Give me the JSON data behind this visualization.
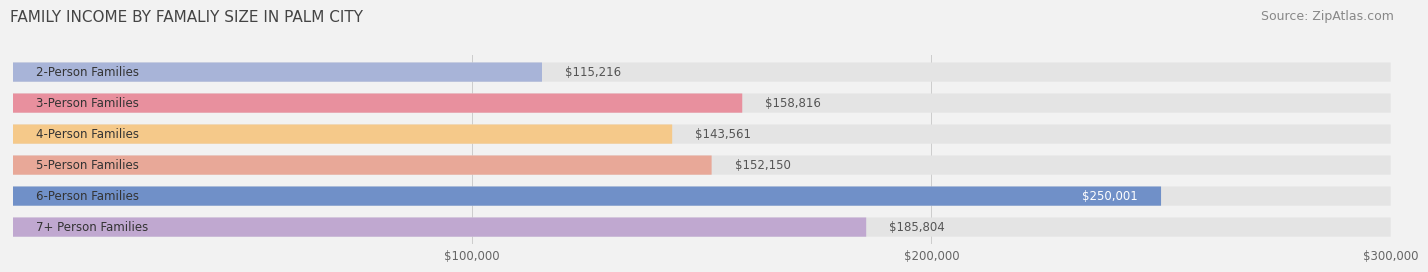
{
  "title": "FAMILY INCOME BY FAMALIY SIZE IN PALM CITY",
  "source": "Source: ZipAtlas.com",
  "categories": [
    "2-Person Families",
    "3-Person Families",
    "4-Person Families",
    "5-Person Families",
    "6-Person Families",
    "7+ Person Families"
  ],
  "values": [
    115216,
    158816,
    143561,
    152150,
    250001,
    185804
  ],
  "bar_colors": [
    "#a8b4d8",
    "#e8909e",
    "#f5c98a",
    "#e8a898",
    "#7090c8",
    "#c0a8d0"
  ],
  "value_labels": [
    "$115,216",
    "$158,816",
    "$143,561",
    "$152,150",
    "$250,001",
    "$185,804"
  ],
  "value_label_colors": [
    "#555555",
    "#555555",
    "#555555",
    "#555555",
    "#ffffff",
    "#555555"
  ],
  "xlim": [
    0,
    300000
  ],
  "xticks": [
    100000,
    200000,
    300000
  ],
  "xtick_labels": [
    "$100,000",
    "$200,000",
    "$300,000"
  ],
  "background_color": "#f2f2f2",
  "bar_background_color": "#e4e4e4",
  "title_fontsize": 11,
  "source_fontsize": 9,
  "bar_label_fontsize": 8.5,
  "value_label_fontsize": 8.5,
  "tick_fontsize": 8.5
}
